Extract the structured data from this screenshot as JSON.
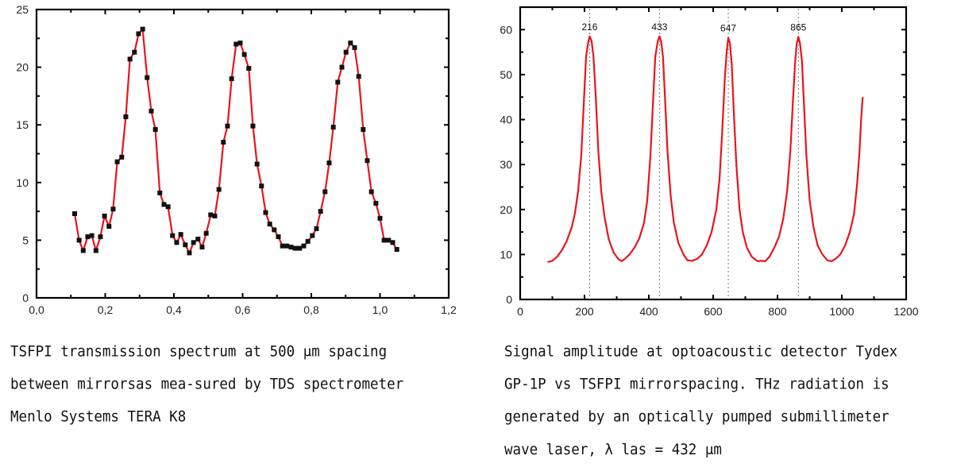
{
  "charts": {
    "left": {
      "caption_lines": [
        "TSFPI transmission spectrum at 500 μm spacing",
        "between mirrorsas mea-sured by TDS spectrometer",
        "Menlo Systems TERA K8"
      ]
    },
    "right": {
      "caption_lines": [
        "Signal amplitude at optoacoustic detector Tydex",
        "GP-1P vs TSFPI mirrorspacing. THz radiation is",
        "generated by an optically pumped submillimeter",
        "wave laser, λ las = 432 μm"
      ]
    }
  },
  "chart_data": [
    {
      "type": "line",
      "title": "",
      "xlabel": "",
      "ylabel": "",
      "xlim": [
        0,
        1.2
      ],
      "ylim": [
        0,
        25
      ],
      "x_ticks": [
        "0,0",
        "0,2",
        "0,4",
        "0,6",
        "0,8",
        "1,0",
        "1,2"
      ],
      "x_tick_values": [
        0,
        0.2,
        0.4,
        0.6,
        0.8,
        1.0,
        1.2
      ],
      "y_ticks": [
        "0",
        "5",
        "10",
        "15",
        "20",
        "25"
      ],
      "y_tick_values": [
        0,
        5,
        10,
        15,
        20,
        25
      ],
      "grid": false,
      "markers": "square",
      "line_color": "#e8141c",
      "marker_color": "#111111",
      "series": [
        {
          "name": "transmission",
          "x": [
            0.111,
            0.124,
            0.136,
            0.149,
            0.161,
            0.173,
            0.186,
            0.198,
            0.211,
            0.223,
            0.235,
            0.248,
            0.26,
            0.272,
            0.285,
            0.297,
            0.309,
            0.322,
            0.334,
            0.346,
            0.359,
            0.371,
            0.383,
            0.396,
            0.408,
            0.42,
            0.433,
            0.445,
            0.457,
            0.47,
            0.482,
            0.494,
            0.507,
            0.519,
            0.531,
            0.544,
            0.556,
            0.568,
            0.581,
            0.593,
            0.605,
            0.618,
            0.63,
            0.642,
            0.655,
            0.667,
            0.679,
            0.692,
            0.704,
            0.716,
            0.729,
            0.741,
            0.753,
            0.766,
            0.778,
            0.79,
            0.803,
            0.815,
            0.827,
            0.84,
            0.852,
            0.864,
            0.877,
            0.889,
            0.901,
            0.914,
            0.926,
            0.938,
            0.951,
            0.963,
            0.975,
            0.988,
            1.0,
            1.012,
            1.025,
            1.037,
            1.049
          ],
          "y": [
            7.3,
            5.0,
            4.1,
            5.3,
            5.4,
            4.1,
            5.3,
            7.1,
            6.2,
            7.7,
            11.8,
            12.2,
            15.7,
            20.7,
            21.3,
            22.9,
            23.3,
            19.1,
            16.2,
            14.6,
            9.1,
            8.1,
            7.9,
            5.4,
            4.8,
            5.5,
            4.6,
            3.9,
            4.8,
            5.1,
            4.4,
            5.6,
            7.2,
            7.1,
            9.4,
            13.5,
            14.9,
            19.0,
            22.0,
            22.1,
            21.1,
            19.9,
            14.9,
            11.6,
            9.7,
            7.4,
            6.4,
            5.9,
            5.3,
            4.5,
            4.5,
            4.4,
            4.3,
            4.3,
            4.5,
            4.9,
            5.4,
            6.0,
            7.5,
            9.2,
            11.7,
            14.8,
            18.7,
            20.0,
            21.3,
            22.1,
            21.7,
            19.2,
            14.6,
            11.9,
            9.2,
            8.2,
            6.9,
            5.0,
            5.0,
            4.8,
            4.2
          ]
        }
      ]
    },
    {
      "type": "line",
      "title": "",
      "xlabel": "",
      "ylabel": "",
      "xlim": [
        0,
        1200
      ],
      "ylim": [
        0,
        65
      ],
      "x_ticks": [
        "0",
        "200",
        "400",
        "600",
        "800",
        "1000",
        "1200"
      ],
      "x_tick_values": [
        0,
        200,
        400,
        600,
        800,
        1000,
        1200
      ],
      "y_ticks": [
        "0",
        "10",
        "20",
        "30",
        "40",
        "50",
        "60"
      ],
      "y_tick_values": [
        0,
        10,
        20,
        30,
        40,
        50,
        60
      ],
      "grid": false,
      "line_color": "#e8141c",
      "peak_marker_lines": [
        216,
        433,
        647,
        865
      ],
      "annotations": [
        {
          "text": "216",
          "x": 216,
          "y": 58.5
        },
        {
          "text": "433",
          "x": 433,
          "y": 58.5
        },
        {
          "text": "647",
          "x": 647,
          "y": 58.2
        },
        {
          "text": "865",
          "x": 865,
          "y": 58.4
        }
      ],
      "series": [
        {
          "name": "signal amplitude",
          "x": [
            85,
            100,
            115,
            130,
            145,
            160,
            170,
            180,
            190,
            198,
            205,
            212,
            216,
            222,
            228,
            235,
            243,
            252,
            262,
            275,
            290,
            305,
            315,
            325,
            340,
            355,
            370,
            385,
            395,
            405,
            413,
            420,
            428,
            433,
            438,
            444,
            450,
            458,
            468,
            478,
            492,
            508,
            520,
            535,
            550,
            565,
            580,
            595,
            610,
            620,
            628,
            636,
            642,
            647,
            652,
            658,
            664,
            672,
            682,
            692,
            705,
            720,
            738,
            750,
            762,
            775,
            790,
            805,
            818,
            830,
            840,
            848,
            855,
            860,
            865,
            870,
            876,
            882,
            890,
            900,
            912,
            925,
            940,
            955,
            968,
            980,
            995,
            1010,
            1025,
            1038,
            1048,
            1055,
            1060,
            1065
          ],
          "y": [
            8.3,
            8.6,
            9.5,
            11.0,
            13.0,
            16.0,
            19.0,
            24.0,
            32.0,
            44.0,
            54.0,
            57.5,
            58.5,
            57.5,
            54.0,
            45.0,
            33.0,
            24.0,
            18.5,
            13.5,
            10.5,
            9.0,
            8.5,
            9.0,
            10.0,
            11.5,
            13.5,
            17.0,
            22.0,
            32.0,
            44.0,
            54.0,
            57.5,
            58.5,
            57.5,
            54.0,
            45.0,
            33.0,
            23.0,
            17.0,
            12.5,
            10.0,
            8.7,
            8.6,
            9.0,
            10.0,
            12.0,
            15.0,
            20.0,
            27.0,
            37.0,
            49.0,
            55.0,
            58.2,
            57.0,
            52.0,
            42.0,
            30.0,
            20.0,
            15.0,
            11.5,
            9.5,
            8.5,
            8.6,
            8.5,
            9.5,
            11.5,
            14.0,
            18.0,
            24.0,
            33.0,
            44.0,
            53.0,
            57.0,
            58.4,
            57.0,
            53.0,
            44.0,
            32.0,
            22.0,
            16.0,
            12.0,
            10.0,
            8.7,
            8.5,
            9.0,
            10.0,
            12.0,
            15.0,
            19.0,
            26.0,
            33.0,
            40.0,
            45.0
          ]
        }
      ]
    }
  ]
}
